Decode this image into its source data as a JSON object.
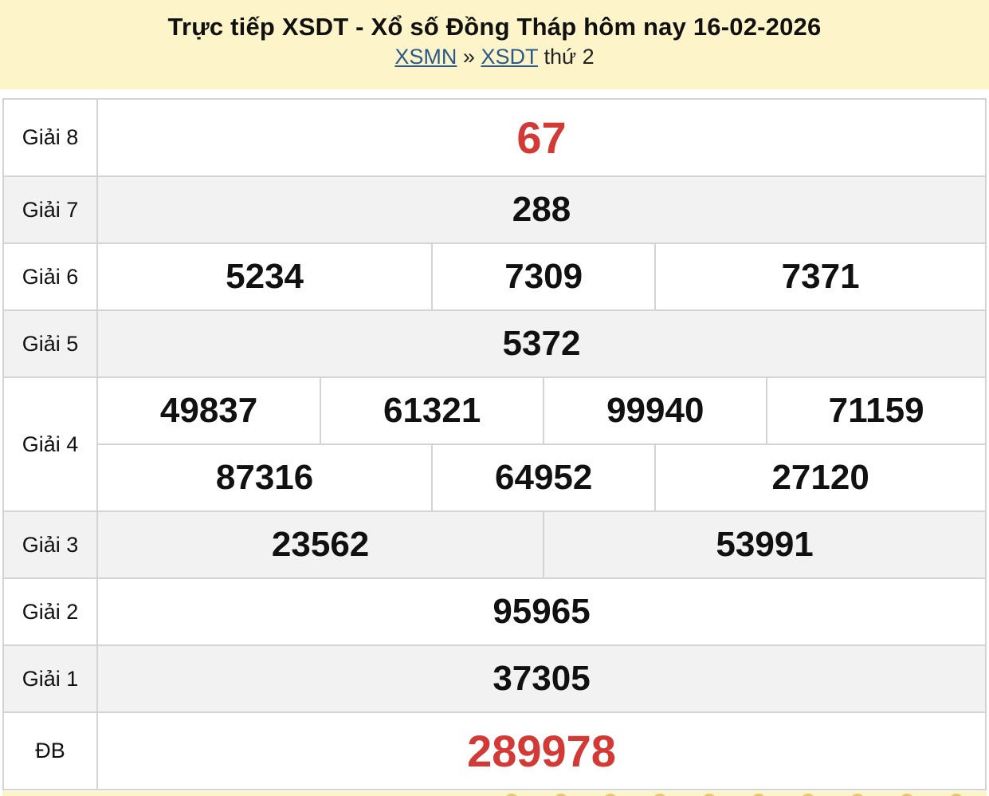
{
  "header": {
    "title": "Trực tiếp XSDT - Xổ số Đồng Tháp hôm nay 16-02-2026",
    "breadcrumb": {
      "link1": "XSMN",
      "sep": "»",
      "link2": "XSDT",
      "suffix": "thứ 2"
    }
  },
  "results": {
    "g8": {
      "label": "Giải 8",
      "values": [
        "67"
      ]
    },
    "g7": {
      "label": "Giải 7",
      "values": [
        "288"
      ]
    },
    "g6": {
      "label": "Giải 6",
      "values": [
        "5234",
        "7309",
        "7371"
      ]
    },
    "g5": {
      "label": "Giải 5",
      "values": [
        "5372"
      ]
    },
    "g4": {
      "label": "Giải 4",
      "values": [
        "49837",
        "61321",
        "99940",
        "71159",
        "87316",
        "64952",
        "27120"
      ]
    },
    "g3": {
      "label": "Giải 3",
      "values": [
        "23562",
        "53991"
      ]
    },
    "g2": {
      "label": "Giải 2",
      "values": [
        "95965"
      ]
    },
    "g1": {
      "label": "Giải 1",
      "values": [
        "37305"
      ]
    },
    "db": {
      "label": "ĐB",
      "values": [
        "289978"
      ]
    }
  },
  "colors": {
    "header_bg": "#fdf5c9",
    "highlight": "#d33a35",
    "link": "#2a5a8a"
  }
}
